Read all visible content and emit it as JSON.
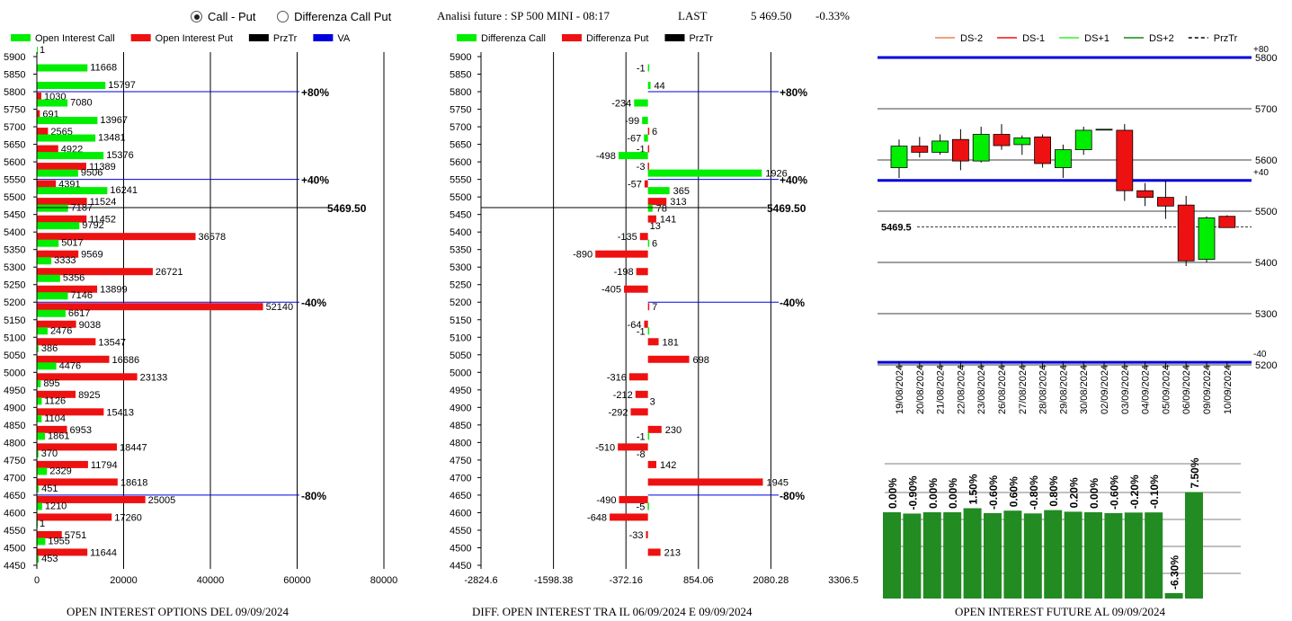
{
  "header": {
    "radio_options": [
      {
        "label": "Call - Put",
        "selected": true
      },
      {
        "label": "Differenza Call Put",
        "selected": false
      }
    ],
    "title": "Analisi future : SP 500 MINI - 08:17",
    "last_label": "LAST",
    "last_value": "5 469.50",
    "change": "-0.33%"
  },
  "colors": {
    "call": "#00ee00",
    "put": "#ee1111",
    "price": "#000000",
    "va": "#0000dd",
    "dark_green": "#228b22"
  },
  "price_label": "5469.50",
  "chart_data": [
    {
      "type": "bar",
      "orientation": "horizontal",
      "title": "OPEN INTEREST OPTIONS DEL 09/09/2024",
      "legend": [
        "Open Interest Call",
        "Open Interest Put",
        "PrzTr",
        "VA"
      ],
      "categories": [
        5900,
        5850,
        5800,
        5750,
        5700,
        5650,
        5600,
        5550,
        5500,
        5450,
        5400,
        5350,
        5300,
        5250,
        5200,
        5150,
        5100,
        5050,
        5000,
        4950,
        4900,
        4850,
        4800,
        4750,
        4700,
        4650,
        4600,
        4550,
        4500,
        4450
      ],
      "series": [
        {
          "name": "Open Interest Call",
          "values": [
            1,
            11668,
            15797,
            7080,
            13967,
            13481,
            15376,
            9506,
            16241,
            7187,
            9792,
            5017,
            3333,
            5356,
            7146,
            6617,
            2476,
            386,
            4476,
            895,
            1126,
            1104,
            1861,
            370,
            2329,
            451,
            1210,
            1,
            1955,
            453
          ]
        },
        {
          "name": "Open Interest Put",
          "values": [
            null,
            null,
            1030,
            691,
            2565,
            4922,
            11389,
            4391,
            11524,
            11452,
            36578,
            9569,
            26721,
            13899,
            52140,
            9038,
            13547,
            16686,
            23133,
            8925,
            15413,
            6953,
            18447,
            11794,
            18618,
            25005,
            17260,
            5751,
            11644,
            null
          ]
        }
      ],
      "xlim": [
        0,
        80000
      ],
      "xticks": [
        "0",
        "20000",
        "40000",
        "60000",
        "80000"
      ],
      "price_line": {
        "value": 5469.5,
        "label": "5469.50"
      },
      "va_lines": [
        {
          "value": 5800,
          "label": "+80%"
        },
        {
          "value": 5550,
          "label": "+40%"
        },
        {
          "value": 5200,
          "label": "-40%"
        },
        {
          "value": 4650,
          "label": "-80%"
        }
      ]
    },
    {
      "type": "bar",
      "orientation": "horizontal",
      "title": "DIFF. OPEN INTEREST TRA IL 06/09/2024 E 09/09/2024",
      "legend": [
        "Differenza Call",
        "Differenza Put",
        "PrzTr"
      ],
      "categories": [
        5900,
        5850,
        5800,
        5750,
        5700,
        5650,
        5600,
        5550,
        5500,
        5450,
        5400,
        5350,
        5300,
        5250,
        5200,
        5150,
        5100,
        5050,
        5000,
        4950,
        4900,
        4850,
        4800,
        4750,
        4700,
        4650,
        4600,
        4550,
        4500,
        4450
      ],
      "series": [
        {
          "name": "Differenza Call",
          "values": [
            null,
            -1,
            44,
            -234,
            -99,
            -67,
            -498,
            1926,
            365,
            78,
            null,
            6,
            null,
            null,
            null,
            null,
            -1,
            null,
            null,
            null,
            null,
            null,
            -1,
            null,
            null,
            null,
            -5,
            null,
            null,
            null
          ]
        },
        {
          "name": "Differenza Put",
          "values": [
            null,
            null,
            null,
            null,
            6,
            -1,
            -3,
            -57,
            313,
            141,
            -135,
            -890,
            -198,
            -405,
            7,
            -64,
            181,
            698,
            -316,
            -212,
            -292,
            230,
            -510,
            142,
            1945,
            -490,
            -648,
            -33,
            213,
            null
          ]
        }
      ],
      "extra_labels": [
        {
          "category": 5400,
          "text": "13"
        },
        {
          "category": 4900,
          "text": "3"
        },
        {
          "category": 4750,
          "text": "-8"
        }
      ],
      "xlim": [
        -2824.6,
        3306.5
      ],
      "xticks": [
        "-2824.6",
        "-1598.38",
        "-372.16",
        "854.06",
        "2080.28",
        "3306.5"
      ],
      "price_line": {
        "value": 5469.5,
        "label": "5469.50"
      },
      "va_lines": [
        {
          "value": 5800,
          "label": "+80%"
        },
        {
          "value": 5550,
          "label": "+40%"
        },
        {
          "value": 5200,
          "label": "-40%"
        },
        {
          "value": 4650,
          "label": "-80%"
        }
      ]
    },
    {
      "type": "candlestick",
      "legend": [
        "DS-2",
        "DS-1",
        "DS+1",
        "DS+2",
        "PrzTr"
      ],
      "legend_colors": [
        "#f08050",
        "#ee1111",
        "#33ee33",
        "#118811",
        "#000000"
      ],
      "dates": [
        "19/08/2024",
        "20/08/2024",
        "21/08/2024",
        "22/08/2024",
        "23/08/2024",
        "26/08/2024",
        "27/08/2024",
        "28/08/2024",
        "29/08/2024",
        "30/08/2024",
        "02/09/2024",
        "03/09/2024",
        "04/09/2024",
        "05/09/2024",
        "06/09/2024",
        "09/09/2024",
        "10/09/2024"
      ],
      "candles": [
        {
          "open": 5585,
          "high": 5640,
          "low": 5565,
          "close": 5627
        },
        {
          "open": 5627,
          "high": 5645,
          "low": 5605,
          "close": 5615
        },
        {
          "open": 5615,
          "high": 5650,
          "low": 5610,
          "close": 5637
        },
        {
          "open": 5640,
          "high": 5660,
          "low": 5580,
          "close": 5598
        },
        {
          "open": 5598,
          "high": 5665,
          "low": 5595,
          "close": 5650
        },
        {
          "open": 5650,
          "high": 5670,
          "low": 5620,
          "close": 5628
        },
        {
          "open": 5630,
          "high": 5648,
          "low": 5610,
          "close": 5643
        },
        {
          "open": 5645,
          "high": 5650,
          "low": 5585,
          "close": 5593
        },
        {
          "open": 5585,
          "high": 5630,
          "low": 5565,
          "close": 5620
        },
        {
          "open": 5620,
          "high": 5665,
          "low": 5610,
          "close": 5658
        },
        {
          "open": 5660,
          "high": 5660,
          "low": 5660,
          "close": 5660
        },
        {
          "open": 5658,
          "high": 5670,
          "low": 5520,
          "close": 5540
        },
        {
          "open": 5540,
          "high": 5555,
          "low": 5510,
          "close": 5527
        },
        {
          "open": 5527,
          "high": 5560,
          "low": 5485,
          "close": 5510
        },
        {
          "open": 5512,
          "high": 5530,
          "low": 5393,
          "close": 5403
        },
        {
          "open": 5406,
          "high": 5490,
          "low": 5400,
          "close": 5487
        },
        {
          "open": 5490,
          "high": 5492,
          "low": 5468,
          "close": 5468
        }
      ],
      "ylim": [
        5200,
        5800
      ],
      "yticks": [
        5800,
        5700,
        5600,
        5500,
        5400,
        5300,
        5200
      ],
      "price_line": {
        "value": 5469.5,
        "label": "5469.5"
      },
      "bands": [
        {
          "value": 5800,
          "label": "+80"
        },
        {
          "value": 5560,
          "label": "+40"
        },
        {
          "value": 5205,
          "label": "-40"
        }
      ]
    },
    {
      "type": "bar",
      "title": "OPEN INTEREST FUTURE AL 09/09/2024",
      "labels": [
        "0.00%",
        "-0.90%",
        "0.00%",
        "0.00%",
        "1.50%",
        "-0.60%",
        "0.60%",
        "-0.80%",
        "0.80%",
        "0.20%",
        "0.00%",
        "-0.60%",
        "-0.20%",
        "-0.10%",
        "-6.30%",
        "7.50%"
      ],
      "values": [
        0.0,
        -0.9,
        0.0,
        0.0,
        1.5,
        -0.6,
        0.6,
        -0.8,
        0.8,
        0.2,
        0.0,
        -0.6,
        -0.2,
        -0.1,
        -6.3,
        7.5
      ]
    }
  ]
}
